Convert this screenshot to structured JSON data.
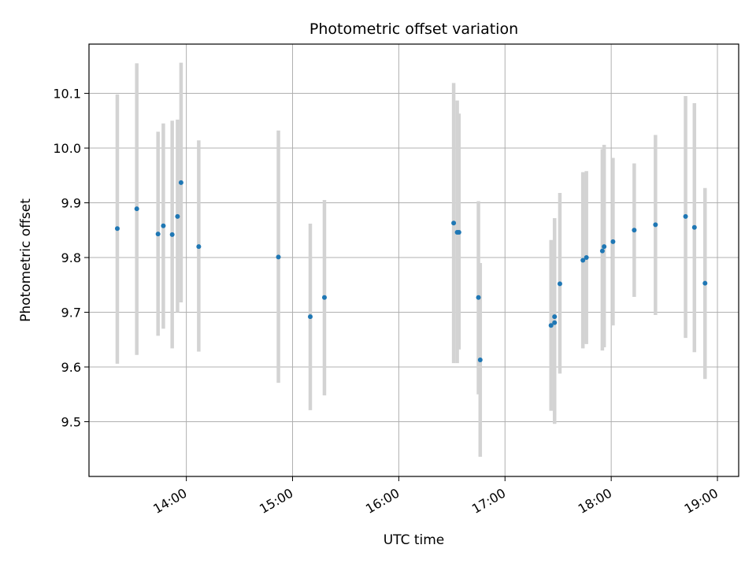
{
  "chart_data": {
    "type": "scatter",
    "title": "Photometric offset variation",
    "xlabel": "UTC time",
    "ylabel": "Photometric offset",
    "x_axis_type": "time",
    "xlim": [
      "13:05",
      "19:12"
    ],
    "ylim": [
      9.4,
      10.19
    ],
    "x_ticks": [
      "14:00",
      "15:00",
      "16:00",
      "17:00",
      "18:00",
      "19:00"
    ],
    "y_ticks": [
      "9.5",
      "9.6",
      "9.7",
      "9.8",
      "9.9",
      "10.0",
      "10.1"
    ],
    "grid": true,
    "marker_color": "#1f77b4",
    "errorbar_color": "#d3d3d3",
    "points": [
      {
        "x": "13:21",
        "y": 9.853,
        "ylow": 9.606,
        "yhigh": 10.098
      },
      {
        "x": "13:32",
        "y": 9.889,
        "ylow": 9.622,
        "yhigh": 10.155
      },
      {
        "x": "13:44",
        "y": 9.843,
        "ylow": 9.657,
        "yhigh": 10.03
      },
      {
        "x": "13:47",
        "y": 9.858,
        "ylow": 9.67,
        "yhigh": 10.045
      },
      {
        "x": "13:52",
        "y": 9.842,
        "ylow": 9.634,
        "yhigh": 10.05
      },
      {
        "x": "13:55",
        "y": 9.875,
        "ylow": 9.7,
        "yhigh": 10.052
      },
      {
        "x": "13:57",
        "y": 9.937,
        "ylow": 9.718,
        "yhigh": 10.156
      },
      {
        "x": "14:07",
        "y": 9.82,
        "ylow": 9.628,
        "yhigh": 10.014
      },
      {
        "x": "14:52",
        "y": 9.801,
        "ylow": 9.571,
        "yhigh": 10.032
      },
      {
        "x": "15:10",
        "y": 9.692,
        "ylow": 9.521,
        "yhigh": 9.862
      },
      {
        "x": "15:18",
        "y": 9.727,
        "ylow": 9.548,
        "yhigh": 9.905
      },
      {
        "x": "16:31",
        "y": 9.863,
        "ylow": 9.607,
        "yhigh": 10.119
      },
      {
        "x": "16:33",
        "y": 9.846,
        "ylow": 9.607,
        "yhigh": 10.087
      },
      {
        "x": "16:34",
        "y": 9.846,
        "ylow": 9.632,
        "yhigh": 10.063
      },
      {
        "x": "16:45",
        "y": 9.727,
        "ylow": 9.55,
        "yhigh": 9.903
      },
      {
        "x": "16:46",
        "y": 9.613,
        "ylow": 9.436,
        "yhigh": 9.79
      },
      {
        "x": "17:26",
        "y": 9.676,
        "ylow": 9.52,
        "yhigh": 9.832
      },
      {
        "x": "17:28",
        "y": 9.681,
        "ylow": 9.496,
        "yhigh": 9.868
      },
      {
        "x": "17:28",
        "y": 9.692,
        "ylow": 9.512,
        "yhigh": 9.872
      },
      {
        "x": "17:31",
        "y": 9.752,
        "ylow": 9.588,
        "yhigh": 9.918
      },
      {
        "x": "17:44",
        "y": 9.795,
        "ylow": 9.634,
        "yhigh": 9.956
      },
      {
        "x": "17:46",
        "y": 9.8,
        "ylow": 9.642,
        "yhigh": 9.958
      },
      {
        "x": "17:55",
        "y": 9.812,
        "ylow": 9.63,
        "yhigh": 9.998
      },
      {
        "x": "17:56",
        "y": 9.82,
        "ylow": 9.636,
        "yhigh": 10.006
      },
      {
        "x": "18:01",
        "y": 9.829,
        "ylow": 9.676,
        "yhigh": 9.982
      },
      {
        "x": "18:13",
        "y": 9.85,
        "ylow": 9.728,
        "yhigh": 9.972
      },
      {
        "x": "18:25",
        "y": 9.86,
        "ylow": 9.695,
        "yhigh": 10.024
      },
      {
        "x": "18:42",
        "y": 9.875,
        "ylow": 9.653,
        "yhigh": 10.095
      },
      {
        "x": "18:47",
        "y": 9.855,
        "ylow": 9.627,
        "yhigh": 10.082
      },
      {
        "x": "18:53",
        "y": 9.753,
        "ylow": 9.578,
        "yhigh": 9.927
      }
    ]
  }
}
